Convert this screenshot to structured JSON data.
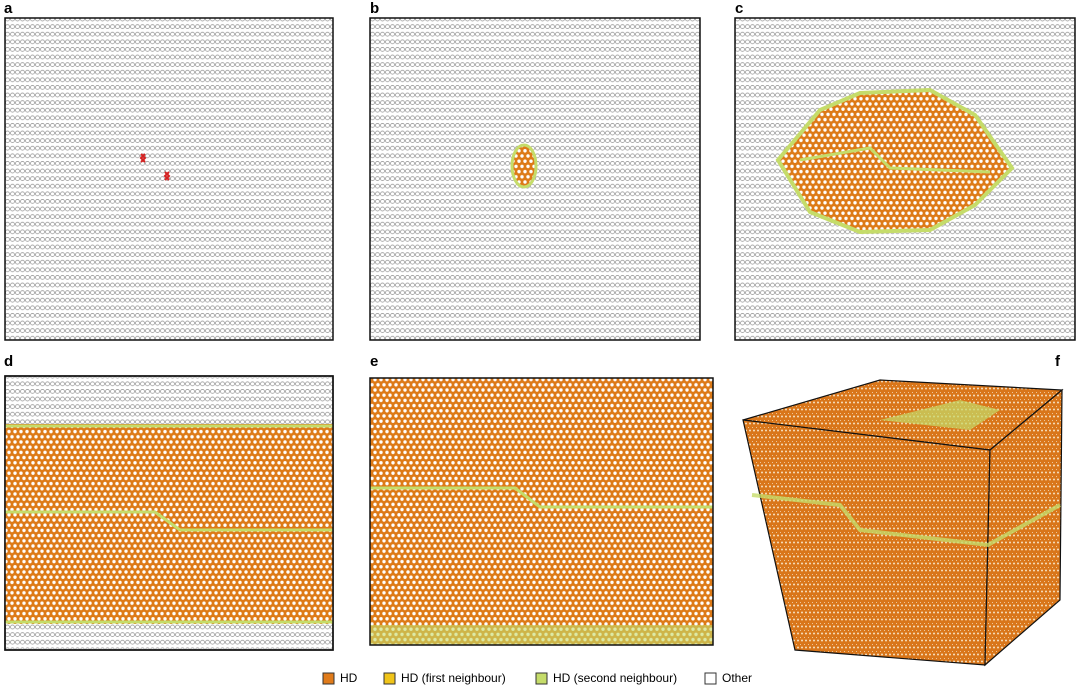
{
  "panels": [
    {
      "label": "a"
    },
    {
      "label": "b"
    },
    {
      "label": "c"
    },
    {
      "label": "d"
    },
    {
      "label": "e"
    },
    {
      "label": "f"
    }
  ],
  "legend": [
    {
      "label": "HD",
      "color": "#e07b1a"
    },
    {
      "label": "HD (first neighbour)",
      "color": "#f0c419"
    },
    {
      "label": "HD (second neighbour)",
      "color": "#c5dc6a"
    },
    {
      "label": "Other",
      "color": "#ffffff"
    }
  ]
}
